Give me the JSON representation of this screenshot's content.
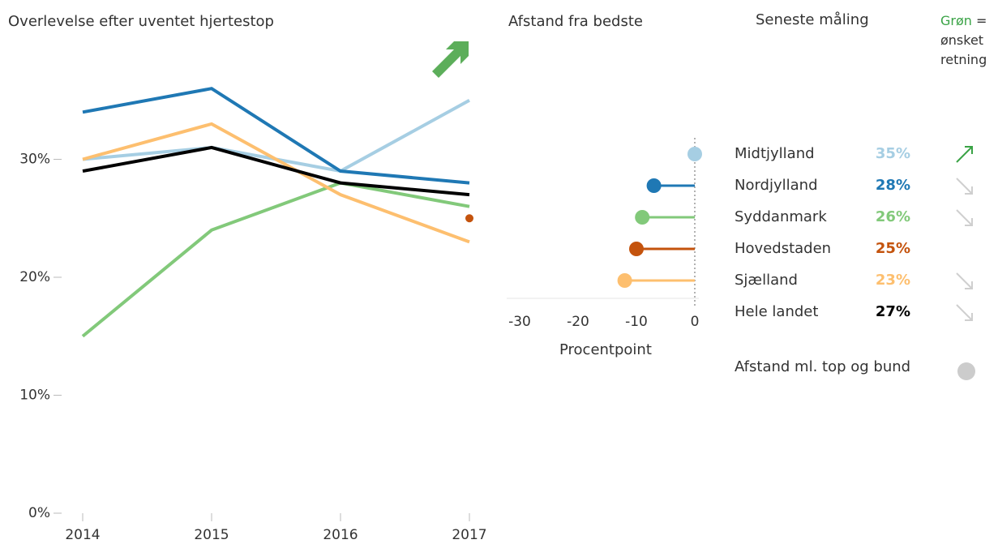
{
  "chart_data": [
    {
      "type": "line",
      "title": "Overlevelse efter uventet hjertestop",
      "categories": [
        "2014",
        "2015",
        "2016",
        "2017"
      ],
      "ylim": [
        0,
        37
      ],
      "yticks": [
        {
          "value": 0,
          "label": "0%"
        },
        {
          "value": 10,
          "label": "10%"
        },
        {
          "value": 20,
          "label": "20%"
        },
        {
          "value": 30,
          "label": "30%"
        }
      ],
      "series": [
        {
          "name": "Midtjylland",
          "color": "#a6cee3",
          "values": [
            30,
            31,
            29,
            35
          ]
        },
        {
          "name": "Nordjylland",
          "color": "#1f78b4",
          "values": [
            34,
            36,
            29,
            28
          ]
        },
        {
          "name": "Syddanmark",
          "color": "#82c97a",
          "values": [
            15,
            24,
            28,
            26
          ]
        },
        {
          "name": "Hovedstaden",
          "color": "#c4530d",
          "values": [
            null,
            null,
            null,
            25
          ]
        },
        {
          "name": "Sjælland",
          "color": "#fdbf6f",
          "values": [
            30,
            33,
            27,
            23
          ]
        },
        {
          "name": "Hele landet",
          "color": "#000000",
          "values": [
            29,
            31,
            28,
            27
          ]
        }
      ]
    },
    {
      "type": "lollipop",
      "title": "Afstand fra bedste",
      "xlabel": "Procentpoint",
      "values": [
        0,
        -7,
        -9,
        -10,
        -12
      ],
      "xlim": [
        -31,
        0.5
      ],
      "xticks": [
        -30,
        -20,
        -10,
        0
      ]
    }
  ],
  "table": {
    "title": "Seneste måling",
    "values": [
      "35%",
      "28%",
      "26%",
      "25%",
      "23%",
      "27%"
    ],
    "trend": [
      "up",
      "down",
      "down",
      null,
      "down",
      "down"
    ]
  },
  "note": {
    "keyword": "Grøn",
    "text": "= ønsket retning"
  },
  "footnote": "Afstand ml. top og bund"
}
